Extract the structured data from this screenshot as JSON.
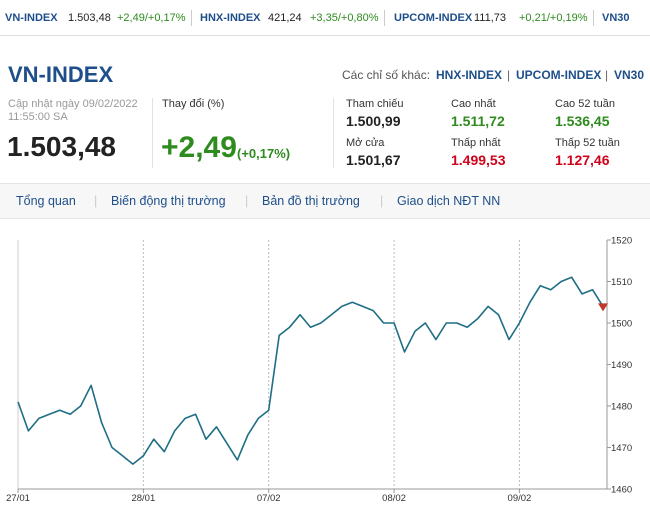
{
  "ticker": [
    {
      "name": "VN-INDEX",
      "value": "1.503,48",
      "change": "+2,49/+0,17%"
    },
    {
      "name": "HNX-INDEX",
      "value": "421,24",
      "change": "+3,35/+0,80%"
    },
    {
      "name": "UPCOM-INDEX",
      "value": "111,73",
      "change": "+0,21/+0,19%"
    },
    {
      "name": "VN30"
    }
  ],
  "header": {
    "title": "VN-INDEX",
    "others_label": "Các chỉ số khác:",
    "others": [
      "HNX-INDEX",
      "UPCOM-INDEX",
      "VN30"
    ]
  },
  "summary": {
    "updated": "Cập nhật ngày 09/02/2022",
    "time": "11:55:00 SA",
    "value": "1.503,48",
    "change_label": "Thay đổi (%)",
    "change": "+2,49",
    "change_pct": "(+0,17%)"
  },
  "stats": [
    {
      "label": "Tham chiếu",
      "value": "1.500,99"
    },
    {
      "label": "Cao nhất",
      "value": "1.511,72"
    },
    {
      "label": "Cao 52 tuần",
      "value": "1.536,45"
    },
    {
      "label": "Mở cửa",
      "value": "1.501,67"
    },
    {
      "label": "Thấp nhất",
      "value": "1.499,53"
    },
    {
      "label": "Thấp 52 tuần",
      "value": "1.127,46"
    }
  ],
  "tabs": [
    "Tổng quan",
    "Biến động thị trường",
    "Bản đồ thị trường",
    "Giao dịch NĐT NN"
  ],
  "chart_data": {
    "type": "line",
    "categories": [
      "27/01",
      null,
      null,
      null,
      null,
      null,
      null,
      null,
      null,
      null,
      null,
      null,
      "28/01",
      null,
      null,
      null,
      null,
      null,
      null,
      null,
      null,
      null,
      null,
      null,
      "07/02",
      null,
      null,
      null,
      null,
      null,
      null,
      null,
      null,
      null,
      null,
      null,
      "08/02",
      null,
      null,
      null,
      null,
      null,
      null,
      null,
      null,
      null,
      null,
      null,
      "09/02",
      null,
      null,
      null,
      null,
      null,
      null,
      null,
      null
    ],
    "values": [
      1481,
      1474,
      1477,
      1478,
      1479,
      1478,
      1480,
      1485,
      1476,
      1470,
      1468,
      1466,
      1468,
      1472,
      1469,
      1474,
      1477,
      1478,
      1472,
      1475,
      1471,
      1467,
      1473,
      1477,
      1479,
      1497,
      1499,
      1502,
      1499,
      1500,
      1502,
      1504,
      1505,
      1504,
      1503,
      1500,
      1500,
      1493,
      1498,
      1500,
      1496,
      1500,
      1500,
      1499,
      1501,
      1504,
      1502,
      1496,
      1500,
      1505,
      1509,
      1508,
      1510,
      1511,
      1507,
      1508,
      1504
    ],
    "color": "#1f6e86",
    "ylim": [
      1460,
      1520
    ],
    "yticks": [
      1460,
      1470,
      1480,
      1490,
      1500,
      1510,
      1520
    ],
    "grid": true
  }
}
